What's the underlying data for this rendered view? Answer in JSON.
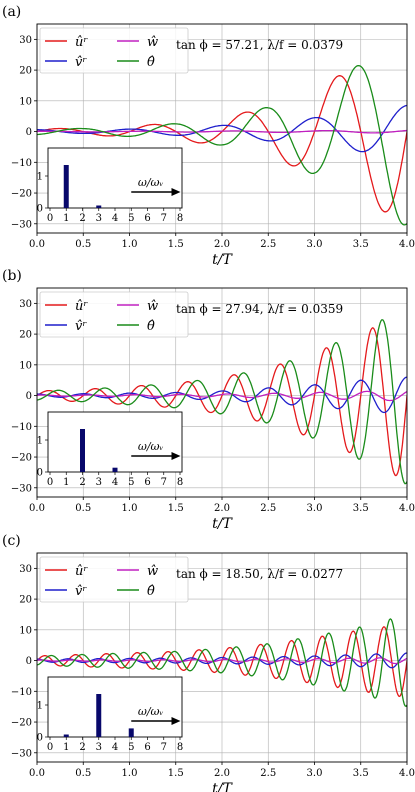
{
  "chart_data": [
    {
      "type": "line",
      "panel_label": "(a)",
      "annotation": "tan ϕ = 57.21, λ/f = 0.0379",
      "xlabel": "t/T",
      "ylabel": "",
      "xlim": [
        0,
        4
      ],
      "ylim": [
        -33,
        35
      ],
      "xticks": [
        "0.0",
        "0.5",
        "1.0",
        "1.5",
        "2.0",
        "2.5",
        "3.0",
        "3.5",
        "4.0"
      ],
      "yticks": [
        "30",
        "20",
        "10",
        "0",
        "−10",
        "−20",
        "−30"
      ],
      "grid": true,
      "legend_position": "top-left",
      "series": [
        {
          "name": "ûʳ",
          "color": "#e41a1c",
          "amp": [
            1.0,
            1.0,
            1.8,
            2.8,
            4.5,
            8.0,
            14.0,
            22.0,
            30.0
          ],
          "freq": 1.0,
          "phase": 0.0
        },
        {
          "name": "v̂ʳ",
          "color": "#1f1fcc",
          "amp": [
            0.6,
            0.6,
            0.8,
            1.2,
            2.0,
            3.0,
            4.5,
            6.5,
            8.5
          ],
          "freq": 1.0,
          "phase": 1.57
        },
        {
          "name": "ŵ",
          "color": "#c020c0",
          "amp": [
            0.1,
            0.1,
            0.1,
            0.15,
            0.2,
            0.25,
            0.3,
            0.4,
            0.5
          ],
          "freq": 1.0,
          "phase": 0.8
        },
        {
          "name": "θ̂",
          "color": "#1a8c1a",
          "amp": [
            1.0,
            1.0,
            1.6,
            2.6,
            4.5,
            8.0,
            14.0,
            22.0,
            31.0
          ],
          "freq": 1.0,
          "phase": -1.3
        }
      ],
      "inset": {
        "type": "bar",
        "xlabel": "ω/ωᵥ",
        "x": [
          1,
          3
        ],
        "values": [
          1.0,
          0.05
        ],
        "xticks": [
          "0",
          "1",
          "2",
          "3",
          "4",
          "5",
          "6",
          "7",
          "8"
        ],
        "yticks": [
          "0",
          "1"
        ]
      }
    },
    {
      "type": "line",
      "panel_label": "(b)",
      "annotation": "tan ϕ = 27.94, λ/f = 0.0359",
      "xlabel": "t/T",
      "ylabel": "",
      "xlim": [
        0,
        4
      ],
      "ylim": [
        -33,
        35
      ],
      "xticks": [
        "0.0",
        "0.5",
        "1.0",
        "1.5",
        "2.0",
        "2.5",
        "3.0",
        "3.5",
        "4.0"
      ],
      "yticks": [
        "30",
        "20",
        "10",
        "0",
        "−10",
        "−20",
        "−30"
      ],
      "grid": true,
      "legend_position": "top-left",
      "series": [
        {
          "name": "ûʳ",
          "color": "#e41a1c",
          "amp": [
            1.5,
            2.0,
            3.0,
            4.0,
            6.0,
            9.0,
            14.0,
            20.0,
            28.0
          ],
          "freq": 2.0,
          "phase": 0.0
        },
        {
          "name": "v̂ʳ",
          "color": "#1f1fcc",
          "amp": [
            0.5,
            0.6,
            0.8,
            1.0,
            1.5,
            2.5,
            3.5,
            5.0,
            6.0
          ],
          "freq": 2.0,
          "phase": 1.57
        },
        {
          "name": "ŵ",
          "color": "#c020c0",
          "amp": [
            0.2,
            0.2,
            0.3,
            0.4,
            0.5,
            0.7,
            1.0,
            1.3,
            1.8
          ],
          "freq": 2.0,
          "phase": 0.8
        },
        {
          "name": "θ̂",
          "color": "#1a8c1a",
          "amp": [
            1.5,
            2.0,
            3.0,
            4.0,
            6.0,
            9.0,
            14.0,
            21.0,
            29.0
          ],
          "freq": 2.0,
          "phase": -1.3
        }
      ],
      "inset": {
        "type": "bar",
        "xlabel": "ω/ωᵥ",
        "x": [
          2,
          4
        ],
        "values": [
          1.0,
          0.1
        ],
        "xticks": [
          "0",
          "1",
          "2",
          "3",
          "4",
          "5",
          "6",
          "7",
          "8"
        ],
        "yticks": [
          "0",
          "1"
        ]
      }
    },
    {
      "type": "line",
      "panel_label": "(c)",
      "annotation": "tan ϕ = 18.50, λ/f = 0.0277",
      "xlabel": "t/T",
      "ylabel": "",
      "xlim": [
        0,
        4
      ],
      "ylim": [
        -33,
        35
      ],
      "xticks": [
        "0.0",
        "0.5",
        "1.0",
        "1.5",
        "2.0",
        "2.5",
        "3.0",
        "3.5",
        "4.0"
      ],
      "yticks": [
        "30",
        "20",
        "10",
        "0",
        "−10",
        "−20",
        "−30"
      ],
      "grid": true,
      "legend_position": "top-left",
      "series": [
        {
          "name": "ûʳ",
          "color": "#e41a1c",
          "amp": [
            1.5,
            2.0,
            2.5,
            3.0,
            4.0,
            5.5,
            7.5,
            10.0,
            12.0
          ],
          "freq": 3.0,
          "phase": 0.0
        },
        {
          "name": "v̂ʳ",
          "color": "#1f1fcc",
          "amp": [
            0.5,
            0.6,
            0.7,
            0.8,
            1.0,
            1.2,
            1.5,
            2.0,
            2.5
          ],
          "freq": 3.0,
          "phase": 1.57
        },
        {
          "name": "ŵ",
          "color": "#c020c0",
          "amp": [
            0.2,
            0.2,
            0.3,
            0.3,
            0.4,
            0.5,
            0.6,
            0.8,
            1.0
          ],
          "freq": 3.0,
          "phase": 0.8
        },
        {
          "name": "θ̂",
          "color": "#1a8c1a",
          "amp": [
            1.5,
            2.0,
            2.5,
            3.0,
            4.0,
            5.5,
            8.0,
            11.0,
            15.0
          ],
          "freq": 3.0,
          "phase": -1.3
        }
      ],
      "inset": {
        "type": "bar",
        "xlabel": "ω/ωᵥ",
        "x": [
          1,
          3,
          5
        ],
        "values": [
          0.05,
          1.0,
          0.2
        ],
        "xticks": [
          "0",
          "1",
          "2",
          "3",
          "4",
          "5",
          "6",
          "7",
          "8"
        ],
        "yticks": [
          "0",
          "1"
        ]
      }
    }
  ]
}
